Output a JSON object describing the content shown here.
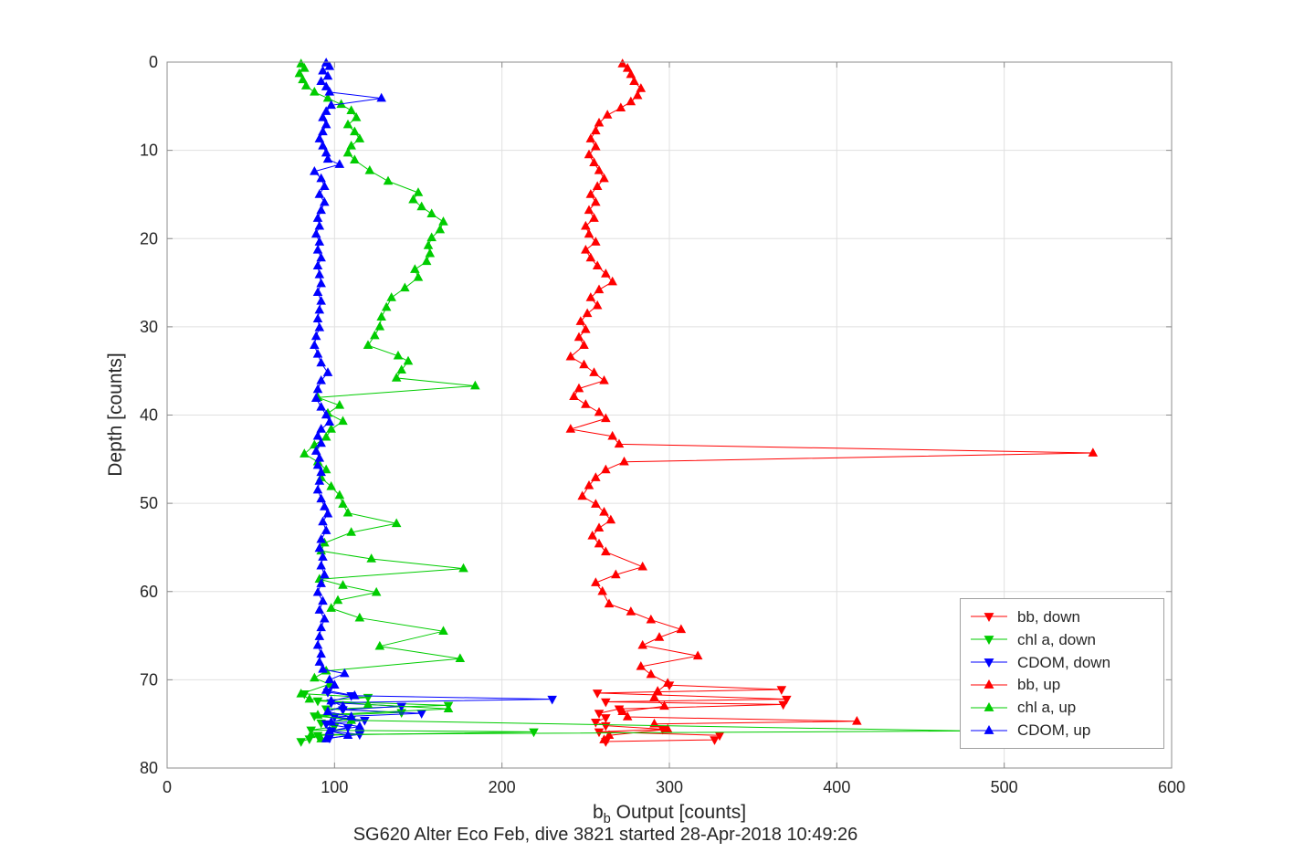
{
  "figure": {
    "title": "SG620 Alter Eco Feb, dive 3821 started 28-Apr-2018 10:49:26",
    "xlabel": {
      "pre": "b",
      "sub": "b",
      "post": " Output [counts]"
    },
    "ylabel": "Depth [counts]"
  },
  "chart_data": {
    "type": "line",
    "title": "SG620 Alter Eco Feb, dive 3821 started 28-Apr-2018 10:49:26",
    "xlabel": "b_b Output [counts]",
    "ylabel": "Depth [counts]",
    "xlim": [
      0,
      600
    ],
    "ylim": [
      0,
      80
    ],
    "y_reversed": true,
    "grid": true,
    "xticks": [
      0,
      100,
      200,
      300,
      400,
      500,
      600
    ],
    "yticks": [
      0,
      10,
      20,
      30,
      40,
      50,
      60,
      70,
      80
    ],
    "legend_position": "lower-right-inside",
    "series": [
      {
        "name": "bb, down",
        "color": "#ff0000",
        "marker": "triangle-down",
        "points": [
          [
            300,
            70.6
          ],
          [
            367,
            71.1
          ],
          [
            257,
            71.5
          ],
          [
            370,
            72.2
          ],
          [
            262,
            72.5
          ],
          [
            368,
            72.8
          ],
          [
            270,
            73.3
          ],
          [
            258,
            73.8
          ],
          [
            262,
            74.3
          ],
          [
            256,
            74.8
          ],
          [
            262,
            75.2
          ],
          [
            296,
            75.6
          ],
          [
            258,
            75.9
          ],
          [
            330,
            76.3
          ],
          [
            327,
            76.8
          ],
          [
            262,
            77.0
          ]
        ]
      },
      {
        "name": "chl a, down",
        "color": "#00cc00",
        "marker": "triangle-down",
        "points": [
          [
            82,
            71.6
          ],
          [
            120,
            72.0
          ],
          [
            90,
            72.4
          ],
          [
            168,
            72.9
          ],
          [
            95,
            73.3
          ],
          [
            140,
            73.7
          ],
          [
            88,
            74.1
          ],
          [
            110,
            74.5
          ],
          [
            92,
            74.9
          ],
          [
            100,
            75.3
          ],
          [
            86,
            75.7
          ],
          [
            219,
            75.9
          ],
          [
            90,
            76.3
          ],
          [
            85,
            76.7
          ],
          [
            80,
            77.0
          ]
        ]
      },
      {
        "name": "CDOM, down",
        "color": "#0000ff",
        "marker": "triangle-down",
        "points": [
          [
            96,
            71.4
          ],
          [
            110,
            71.8
          ],
          [
            230,
            72.2
          ],
          [
            98,
            72.6
          ],
          [
            140,
            73.0
          ],
          [
            105,
            73.4
          ],
          [
            152,
            73.8
          ],
          [
            100,
            74.2
          ],
          [
            118,
            74.6
          ],
          [
            95,
            75.0
          ],
          [
            108,
            75.4
          ],
          [
            98,
            75.8
          ],
          [
            115,
            76.2
          ],
          [
            97,
            76.6
          ]
        ]
      },
      {
        "name": "bb, up",
        "color": "#ff0000",
        "marker": "triangle-up",
        "points": [
          [
            272,
            0.2
          ],
          [
            275,
            0.7
          ],
          [
            277,
            1.4
          ],
          [
            279,
            2.2
          ],
          [
            283,
            3.0
          ],
          [
            281,
            3.8
          ],
          [
            277,
            4.5
          ],
          [
            271,
            5.2
          ],
          [
            263,
            6.0
          ],
          [
            258,
            6.9
          ],
          [
            256,
            7.8
          ],
          [
            253,
            8.7
          ],
          [
            256,
            9.6
          ],
          [
            252,
            10.5
          ],
          [
            255,
            11.4
          ],
          [
            258,
            12.3
          ],
          [
            261,
            13.2
          ],
          [
            257,
            14.1
          ],
          [
            253,
            15.0
          ],
          [
            256,
            15.9
          ],
          [
            252,
            16.8
          ],
          [
            255,
            17.7
          ],
          [
            250,
            18.6
          ],
          [
            252,
            19.5
          ],
          [
            256,
            20.4
          ],
          [
            250,
            21.3
          ],
          [
            253,
            22.2
          ],
          [
            257,
            23.1
          ],
          [
            262,
            24.0
          ],
          [
            266,
            24.9
          ],
          [
            258,
            25.8
          ],
          [
            253,
            26.7
          ],
          [
            257,
            27.6
          ],
          [
            251,
            28.5
          ],
          [
            247,
            29.4
          ],
          [
            250,
            30.3
          ],
          [
            246,
            31.2
          ],
          [
            249,
            32.1
          ],
          [
            241,
            33.4
          ],
          [
            249,
            34.3
          ],
          [
            255,
            35.2
          ],
          [
            261,
            36.1
          ],
          [
            246,
            37.0
          ],
          [
            243,
            37.9
          ],
          [
            250,
            38.8
          ],
          [
            258,
            39.7
          ],
          [
            262,
            40.4
          ],
          [
            241,
            41.6
          ],
          [
            266,
            42.4
          ],
          [
            270,
            43.3
          ],
          [
            553,
            44.3
          ],
          [
            273,
            45.3
          ],
          [
            262,
            46.2
          ],
          [
            256,
            47.1
          ],
          [
            252,
            48.0
          ],
          [
            248,
            49.2
          ],
          [
            256,
            50.1
          ],
          [
            261,
            51.0
          ],
          [
            265,
            51.9
          ],
          [
            258,
            52.8
          ],
          [
            254,
            53.7
          ],
          [
            258,
            54.6
          ],
          [
            262,
            55.5
          ],
          [
            284,
            57.2
          ],
          [
            268,
            58.1
          ],
          [
            256,
            59.0
          ],
          [
            260,
            60.0
          ],
          [
            264,
            61.4
          ],
          [
            277,
            62.3
          ],
          [
            289,
            63.2
          ],
          [
            307,
            64.3
          ],
          [
            294,
            65.2
          ],
          [
            284,
            66.1
          ],
          [
            317,
            67.3
          ],
          [
            283,
            68.5
          ],
          [
            289,
            69.4
          ],
          [
            299,
            70.4
          ],
          [
            293,
            71.3
          ],
          [
            291,
            72.0
          ],
          [
            297,
            73.0
          ],
          [
            272,
            73.6
          ],
          [
            275,
            74.2
          ],
          [
            412,
            74.7
          ],
          [
            291,
            75.0
          ],
          [
            299,
            75.6
          ],
          [
            264,
            76.3
          ],
          [
            261,
            76.8
          ]
        ]
      },
      {
        "name": "chl a, up",
        "color": "#00cc00",
        "marker": "triangle-up",
        "points": [
          [
            80,
            0.2
          ],
          [
            82,
            0.7
          ],
          [
            79,
            1.3
          ],
          [
            81,
            2.0
          ],
          [
            83,
            2.7
          ],
          [
            88,
            3.4
          ],
          [
            96,
            4.1
          ],
          [
            104,
            4.8
          ],
          [
            110,
            5.5
          ],
          [
            113,
            6.3
          ],
          [
            108,
            7.1
          ],
          [
            112,
            7.9
          ],
          [
            115,
            8.7
          ],
          [
            110,
            9.5
          ],
          [
            108,
            10.3
          ],
          [
            112,
            11.1
          ],
          [
            121,
            12.3
          ],
          [
            132,
            13.5
          ],
          [
            150,
            14.8
          ],
          [
            147,
            15.6
          ],
          [
            152,
            16.4
          ],
          [
            158,
            17.2
          ],
          [
            165,
            18.1
          ],
          [
            163,
            19.0
          ],
          [
            158,
            19.9
          ],
          [
            156,
            20.8
          ],
          [
            157,
            21.7
          ],
          [
            155,
            22.6
          ],
          [
            148,
            23.5
          ],
          [
            150,
            24.4
          ],
          [
            142,
            25.6
          ],
          [
            134,
            26.7
          ],
          [
            131,
            27.8
          ],
          [
            128,
            28.9
          ],
          [
            127,
            30.0
          ],
          [
            124,
            31.0
          ],
          [
            120,
            32.1
          ],
          [
            138,
            33.3
          ],
          [
            144,
            33.9
          ],
          [
            140,
            34.9
          ],
          [
            137,
            35.8
          ],
          [
            184,
            36.7
          ],
          [
            90,
            38.0
          ],
          [
            103,
            38.9
          ],
          [
            96,
            39.8
          ],
          [
            105,
            40.7
          ],
          [
            98,
            41.6
          ],
          [
            95,
            42.5
          ],
          [
            88,
            43.4
          ],
          [
            82,
            44.4
          ],
          [
            90,
            45.3
          ],
          [
            95,
            46.2
          ],
          [
            92,
            47.1
          ],
          [
            98,
            48.1
          ],
          [
            103,
            49.1
          ],
          [
            105,
            50.1
          ],
          [
            108,
            51.1
          ],
          [
            137,
            52.3
          ],
          [
            110,
            53.3
          ],
          [
            94,
            54.5
          ],
          [
            92,
            55.4
          ],
          [
            122,
            56.3
          ],
          [
            177,
            57.4
          ],
          [
            91,
            58.6
          ],
          [
            105,
            59.3
          ],
          [
            125,
            60.1
          ],
          [
            102,
            61.0
          ],
          [
            98,
            61.9
          ],
          [
            115,
            63.0
          ],
          [
            165,
            64.5
          ],
          [
            127,
            66.2
          ],
          [
            175,
            67.6
          ],
          [
            95,
            69.0
          ],
          [
            88,
            69.8
          ],
          [
            97,
            70.5
          ],
          [
            80,
            71.6
          ],
          [
            85,
            72.2
          ],
          [
            120,
            72.8
          ],
          [
            168,
            73.3
          ],
          [
            90,
            74.0
          ],
          [
            110,
            74.6
          ],
          [
            480,
            75.8
          ],
          [
            86,
            76.2
          ],
          [
            92,
            76.7
          ]
        ]
      },
      {
        "name": "CDOM, up",
        "color": "#0000ff",
        "marker": "triangle-up",
        "points": [
          [
            95,
            0.1
          ],
          [
            97,
            0.5
          ],
          [
            93,
            1.0
          ],
          [
            96,
            1.6
          ],
          [
            92,
            2.2
          ],
          [
            95,
            2.8
          ],
          [
            97,
            3.4
          ],
          [
            128,
            4.1
          ],
          [
            98,
            4.9
          ],
          [
            95,
            5.6
          ],
          [
            93,
            6.3
          ],
          [
            95,
            7.1
          ],
          [
            93,
            7.9
          ],
          [
            91,
            8.7
          ],
          [
            93,
            9.5
          ],
          [
            95,
            10.3
          ],
          [
            96,
            11.0
          ],
          [
            103,
            11.6
          ],
          [
            88,
            12.4
          ],
          [
            92,
            13.2
          ],
          [
            94,
            14.1
          ],
          [
            91,
            15.0
          ],
          [
            94,
            15.9
          ],
          [
            92,
            16.8
          ],
          [
            90,
            17.7
          ],
          [
            91,
            18.6
          ],
          [
            89,
            19.5
          ],
          [
            91,
            20.4
          ],
          [
            90,
            21.3
          ],
          [
            92,
            22.2
          ],
          [
            90,
            23.1
          ],
          [
            91,
            24.1
          ],
          [
            92,
            25.1
          ],
          [
            90,
            26.1
          ],
          [
            92,
            27.1
          ],
          [
            91,
            28.1
          ],
          [
            90,
            29.1
          ],
          [
            91,
            30.1
          ],
          [
            89,
            31.1
          ],
          [
            88,
            32.1
          ],
          [
            90,
            33.1
          ],
          [
            92,
            34.1
          ],
          [
            96,
            35.2
          ],
          [
            92,
            36.1
          ],
          [
            90,
            37.1
          ],
          [
            89,
            38.1
          ],
          [
            92,
            39.1
          ],
          [
            95,
            40.0
          ],
          [
            97,
            40.8
          ],
          [
            92,
            41.6
          ],
          [
            90,
            42.4
          ],
          [
            92,
            43.2
          ],
          [
            89,
            44.1
          ],
          [
            91,
            44.9
          ],
          [
            90,
            45.7
          ],
          [
            92,
            46.5
          ],
          [
            91,
            47.5
          ],
          [
            90,
            48.5
          ],
          [
            92,
            49.5
          ],
          [
            94,
            50.4
          ],
          [
            96,
            51.2
          ],
          [
            93,
            52.1
          ],
          [
            95,
            53.1
          ],
          [
            92,
            54.1
          ],
          [
            91,
            55.1
          ],
          [
            93,
            56.1
          ],
          [
            92,
            57.1
          ],
          [
            94,
            58.1
          ],
          [
            92,
            59.1
          ],
          [
            90,
            60.1
          ],
          [
            93,
            61.1
          ],
          [
            91,
            62.1
          ],
          [
            94,
            63.1
          ],
          [
            92,
            64.1
          ],
          [
            91,
            65.1
          ],
          [
            90,
            66.1
          ],
          [
            92,
            67.1
          ],
          [
            91,
            68.0
          ],
          [
            93,
            68.8
          ],
          [
            106,
            69.3
          ],
          [
            97,
            70.0
          ],
          [
            100,
            70.6
          ],
          [
            95,
            71.2
          ],
          [
            112,
            71.8
          ],
          [
            98,
            72.4
          ],
          [
            105,
            73.0
          ],
          [
            96,
            73.6
          ],
          [
            110,
            74.2
          ],
          [
            98,
            74.8
          ],
          [
            115,
            75.3
          ],
          [
            97,
            75.8
          ],
          [
            108,
            76.3
          ],
          [
            95,
            76.7
          ]
        ]
      }
    ]
  }
}
